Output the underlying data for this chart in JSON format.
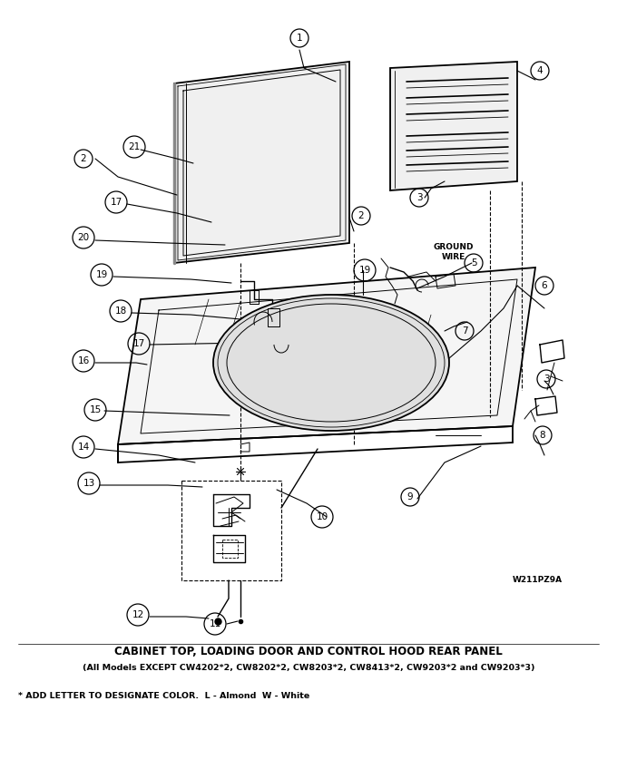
{
  "title_line1": "CABINET TOP, LOADING DOOR AND CONTROL HOOD REAR PANEL",
  "title_line2": "(All Models EXCEPT CW4202*2, CW8202*2, CW8203*2, CW8413*2, CW9203*2 and CW9203*3)",
  "footer": "* ADD LETTER TO DESIGNATE COLOR.  L - Almond  W - White",
  "watermark": "W211PZ9A",
  "bg_color": "#ffffff"
}
